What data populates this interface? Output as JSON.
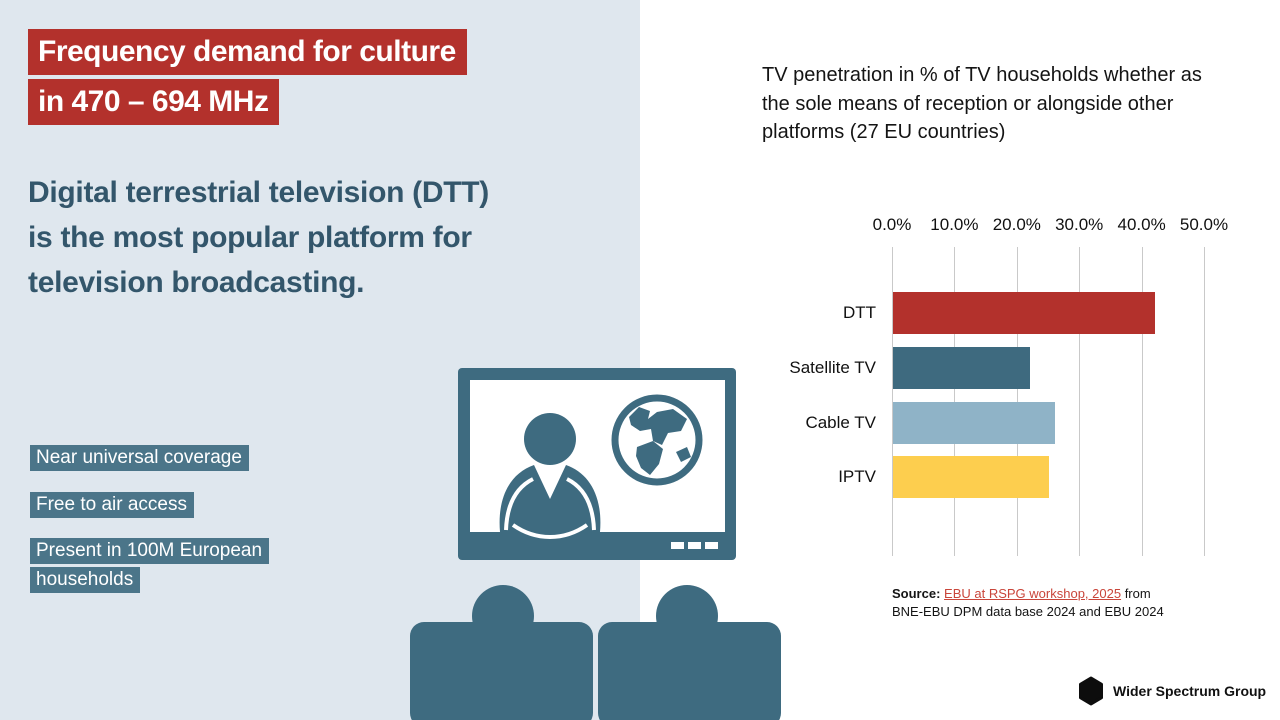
{
  "slide": {
    "title": {
      "line1": "Frequency demand for culture",
      "line2": "in 470 – 694 MHz"
    },
    "subtitle": "Digital terrestrial television (DTT) is the most popular platform for television broadcasting.",
    "badges": [
      "Near universal coverage",
      "Free to air access",
      "Present in 100M European households"
    ],
    "icons": [
      "tv-screen-icon",
      "news-anchor-icon",
      "globe-icon",
      "audience-viewers-icon",
      "hexagon-logo-icon"
    ]
  },
  "chart": {
    "title": "TV penetration in % of TV households whether as the sole means of reception or alongside other platforms (27 EU countries)"
  },
  "chart_data": {
    "type": "bar",
    "orientation": "horizontal",
    "title": "TV penetration in % of TV households whether as the sole means of reception or alongside other platforms (27 EU countries)",
    "categories": [
      "DTT",
      "Satellite TV",
      "Cable TV",
      "IPTV"
    ],
    "values": [
      42,
      22,
      26,
      25
    ],
    "unit": "%",
    "xlim": [
      0,
      50
    ],
    "xticks": [
      "0.0%",
      "10.0%",
      "20.0%",
      "30.0%",
      "40.0%",
      "50.0%"
    ],
    "tick_step": 10,
    "grid": true,
    "legend": false,
    "bar_colors": [
      "#b3312c",
      "#3e6a7f",
      "#8fb3c7",
      "#fdce4e"
    ]
  },
  "source": {
    "label": "Source:",
    "link_text": "EBU at RSPG workshop, 2025",
    "rest": "from BNE-EBU DPM data base 2024 and EBU 2024"
  },
  "brand": {
    "name": "Wider Spectrum Group"
  },
  "colors": {
    "panel": "#dfe7ee",
    "red": "#b3312c",
    "heading": "#33566b",
    "badge": "#4b7589",
    "illus": "#3e6b80",
    "link": "#c9453a",
    "grid": "#c9c9c9"
  }
}
